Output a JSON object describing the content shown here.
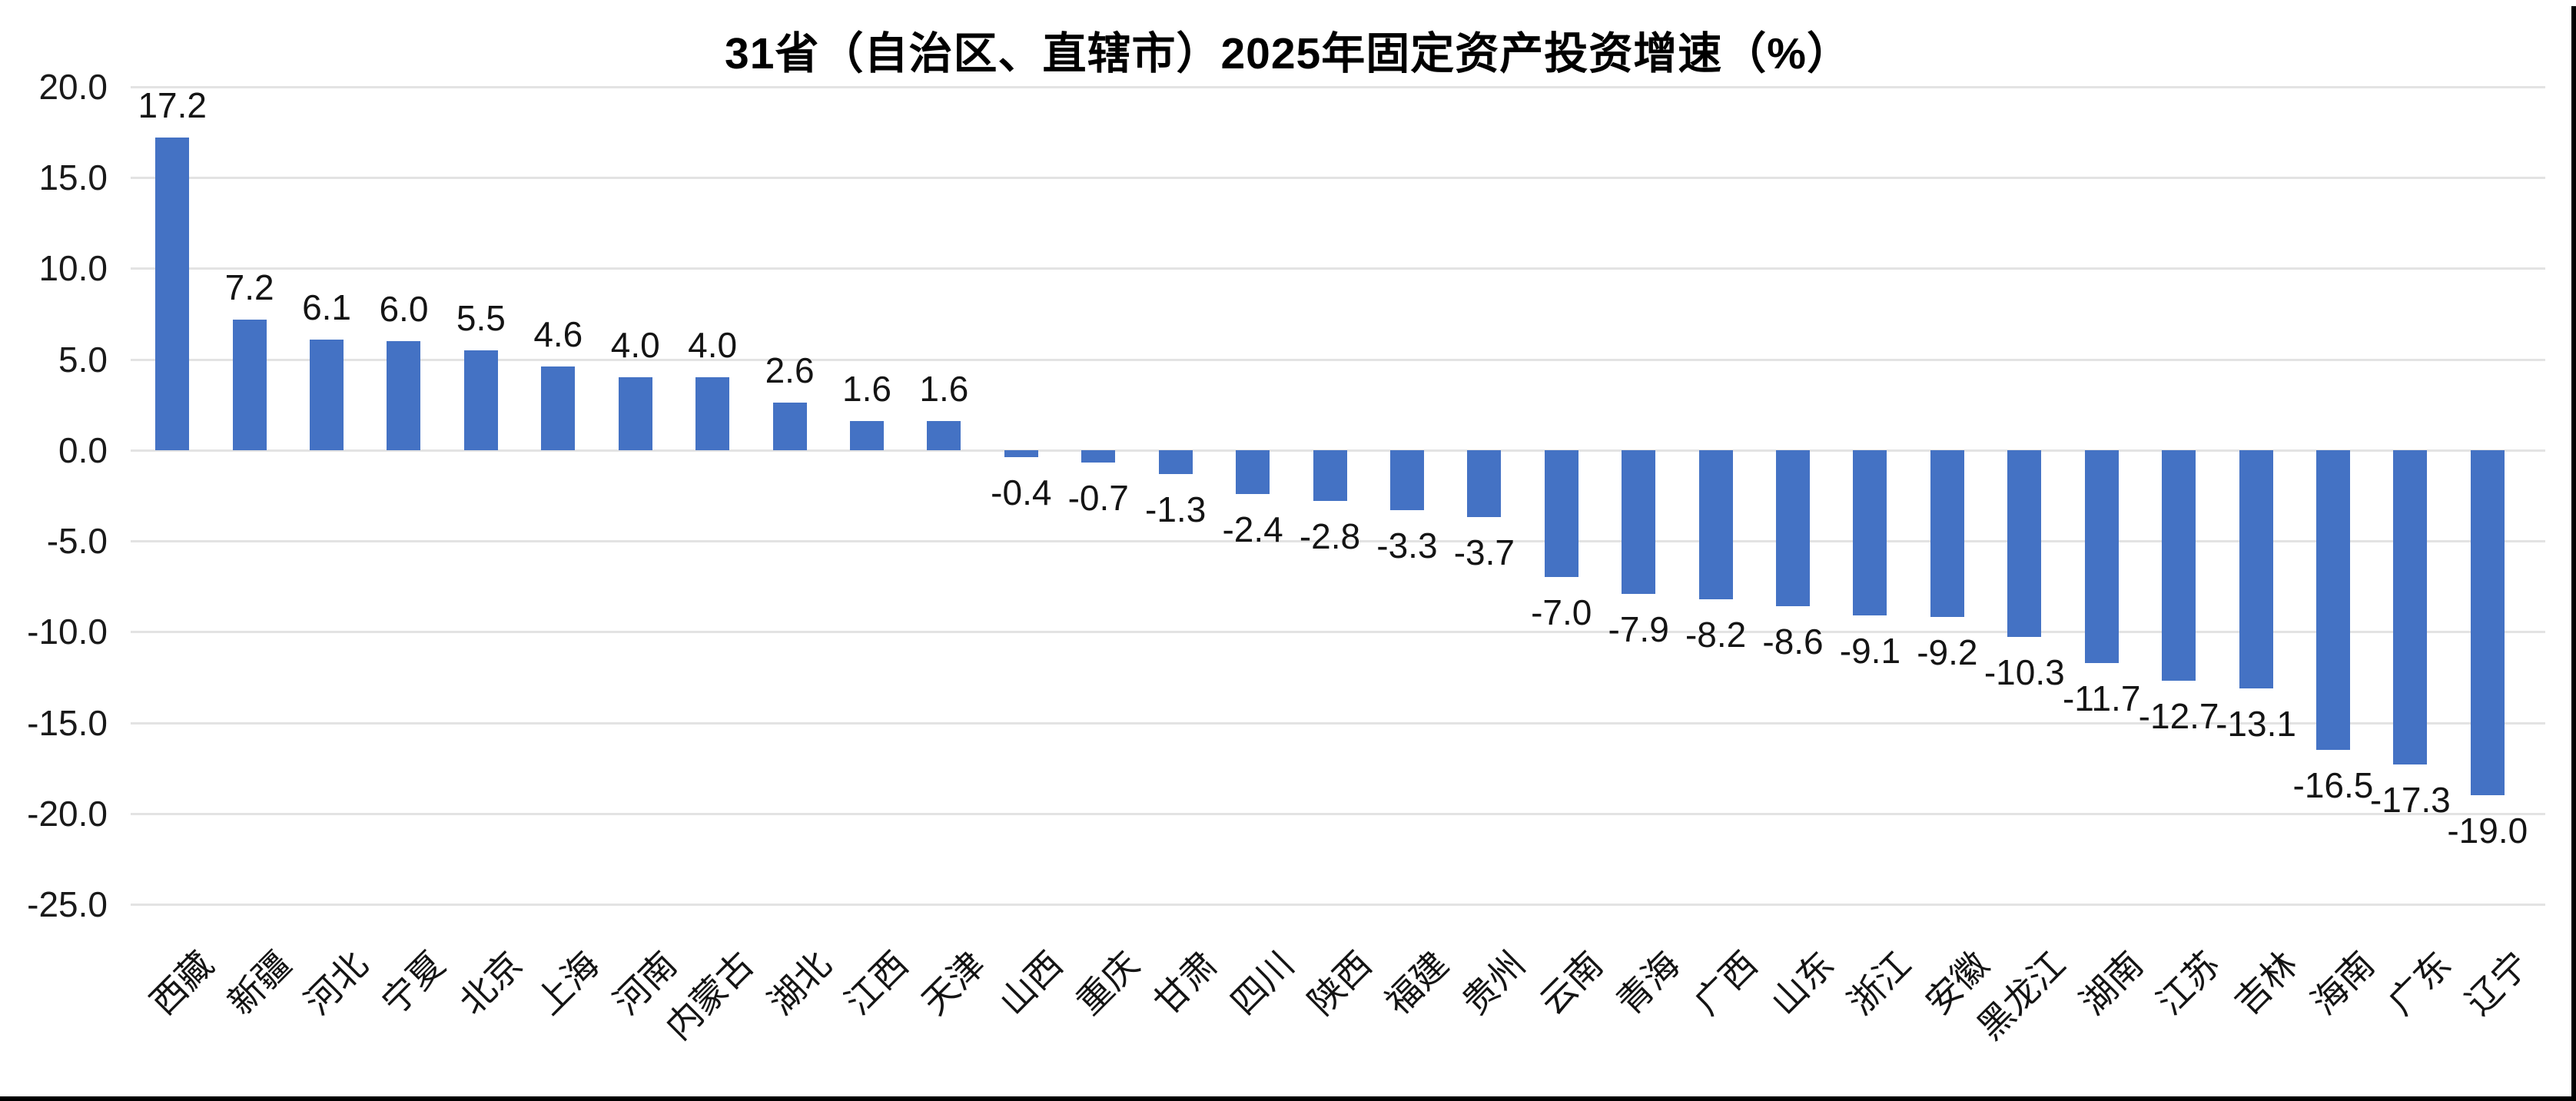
{
  "chart_data": {
    "type": "bar",
    "title": "31省（自治区、直辖市）2025年固定资产投资增速（%）",
    "categories": [
      "西藏",
      "新疆",
      "河北",
      "宁夏",
      "北京",
      "上海",
      "河南",
      "内蒙古",
      "湖北",
      "江西",
      "天津",
      "山西",
      "重庆",
      "甘肃",
      "四川",
      "陕西",
      "福建",
      "贵州",
      "云南",
      "青海",
      "广西",
      "山东",
      "浙江",
      "安徽",
      "黑龙江",
      "湖南",
      "江苏",
      "吉林",
      "海南",
      "广东",
      "辽宁"
    ],
    "values": [
      17.2,
      7.2,
      6.1,
      6.0,
      5.5,
      4.6,
      4.0,
      4.0,
      2.6,
      1.6,
      1.6,
      -0.4,
      -0.7,
      -1.3,
      -2.4,
      -2.8,
      -3.3,
      -3.7,
      -7.0,
      -7.9,
      -8.2,
      -8.6,
      -9.1,
      -9.2,
      -10.3,
      -11.7,
      -12.7,
      -13.1,
      -16.5,
      -17.3,
      -19.0
    ],
    "data_labels": [
      "17.2",
      "7.2",
      "6.1",
      "6.0",
      "5.5",
      "4.6",
      "4.0",
      "4.0",
      "2.6",
      "1.6",
      "1.6",
      "-0.4",
      "-0.7",
      "-1.3",
      "-2.4",
      "-2.8",
      "-3.3",
      "-3.7",
      "-7.0",
      "-7.9",
      "-8.2",
      "-8.6",
      "-9.1",
      "-9.2",
      "-10.3",
      "-11.7",
      "-12.7",
      "-13.1",
      "-16.5",
      "-17.3",
      "-19.0"
    ],
    "y_ticks": [
      "20.0",
      "15.0",
      "10.0",
      "5.0",
      "0.0",
      "-5.0",
      "-10.0",
      "-15.0",
      "-20.0",
      "-25.0"
    ],
    "ylim": [
      -25.0,
      20.0
    ],
    "y_step": 5.0,
    "grid": "horizontal",
    "legend": "none",
    "x_label_rotation_deg": 45,
    "colors": {
      "bar": "#4472C4",
      "gridline": "#E3E3E3",
      "text": "#141414",
      "title": "#000000",
      "background": "#FFFFFF",
      "frame_border": "#000000"
    }
  }
}
